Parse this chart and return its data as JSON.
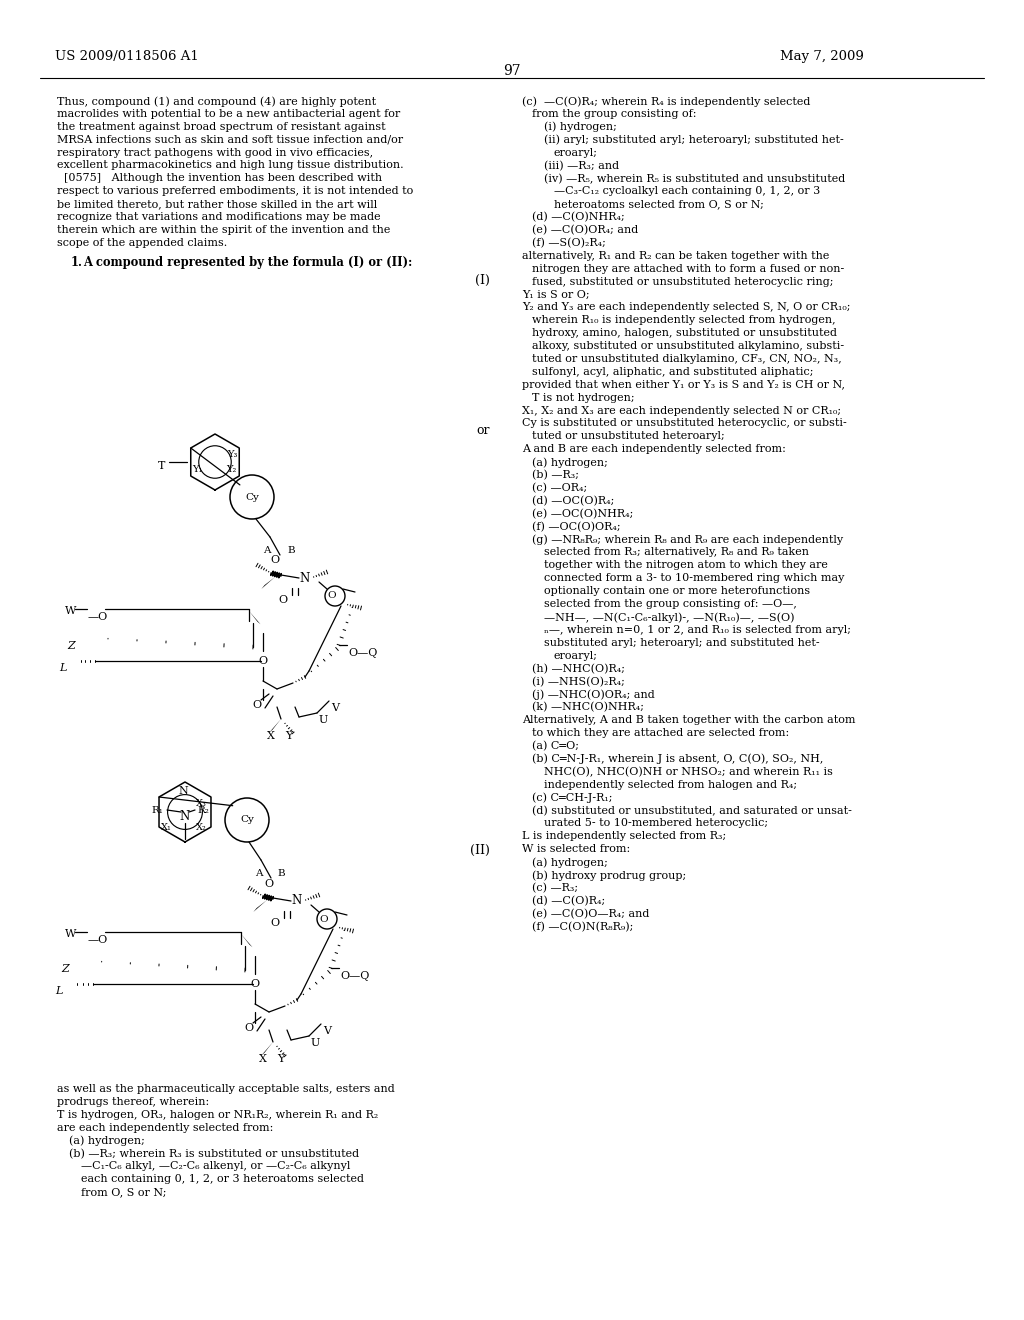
{
  "page_header_left": "US 2009/0118506 A1",
  "page_header_right": "May 7, 2009",
  "page_number": "97",
  "background_color": "#ffffff"
}
